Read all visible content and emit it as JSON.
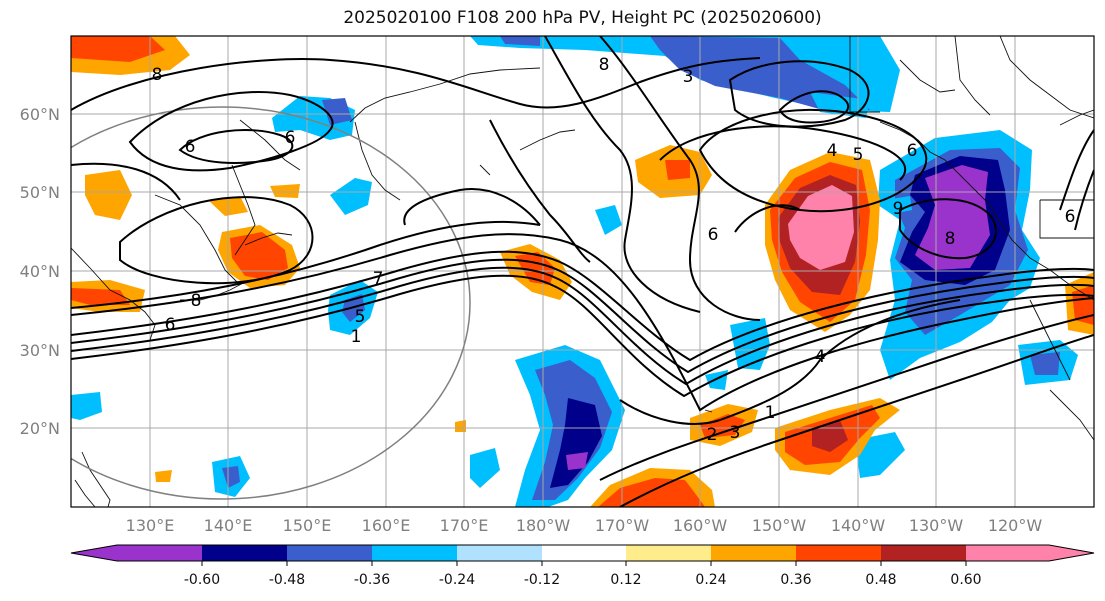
{
  "title": "2025020100 F108 200 hPa PV, Height PC (2025020600)",
  "lat_labels": [
    "60°N",
    "50°N",
    "40°N",
    "30°N",
    "20°N"
  ],
  "lon_labels": [
    "130°E",
    "140°E",
    "150°E",
    "160°E",
    "170°E",
    "180°W",
    "170°W",
    "160°W",
    "150°W",
    "140°W",
    "130°W",
    "120°W"
  ],
  "colorbar": {
    "colors": [
      "#9933cc",
      "#00008b",
      "#3a5fcd",
      "#00bfff",
      "#b0e2ff",
      "#ffffff",
      "#ffec8b",
      "#ffa500",
      "#ff4500",
      "#b22222",
      "#ff82ab"
    ],
    "tick_labels": [
      "-0.60",
      "-0.48",
      "-0.36",
      "-0.24",
      "-0.12",
      "0.12",
      "0.24",
      "0.36",
      "0.48",
      "0.60"
    ]
  },
  "contour_labels": [
    "8",
    "6",
    "6",
    "7",
    "5",
    "1",
    "6",
    "6",
    "3",
    "4",
    "5",
    "6",
    "8",
    "9",
    "8",
    "6",
    "4",
    "1",
    "3",
    "2",
    "8"
  ]
}
